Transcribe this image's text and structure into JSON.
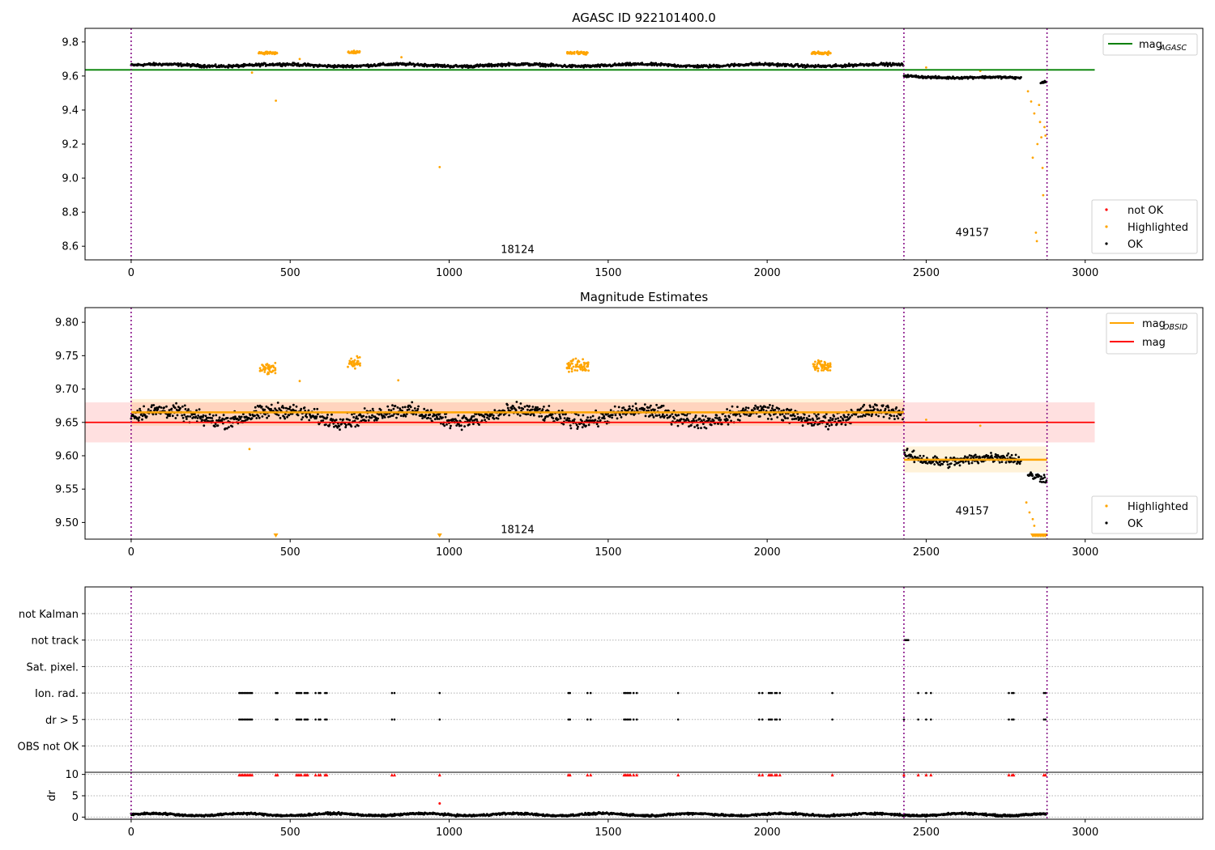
{
  "chart_data": [
    {
      "type": "scatter",
      "title": "AGASC ID 922101400.0",
      "xlim": [
        -145,
        3370
      ],
      "ylim": [
        8.52,
        9.88
      ],
      "xticks": [
        0,
        500,
        1000,
        1500,
        2000,
        2500,
        3000
      ],
      "yticks": [
        8.6,
        8.8,
        9.0,
        9.2,
        9.4,
        9.6,
        9.8
      ],
      "ytick_labels": [
        "8.6",
        "8.8",
        "9.0",
        "9.2",
        "9.4",
        "9.6",
        "9.8"
      ],
      "obs_boundaries": [
        0,
        2430,
        2880
      ],
      "obsids": [
        {
          "label": "18124",
          "x": 1215,
          "y": 8.56
        },
        {
          "label": "49157",
          "x": 2645,
          "y": 8.66
        }
      ],
      "lines": [
        {
          "name": "mag_AGASC",
          "x": [
            -145,
            3030
          ],
          "y": [
            9.636,
            9.636
          ],
          "color": "#008000"
        }
      ],
      "legends": [
        {
          "position": "upper right",
          "entries": [
            {
              "label": "mag",
              "sub": "AGASC",
              "kind": "line",
              "color": "#008000"
            }
          ]
        },
        {
          "position": "lower right",
          "entries": [
            {
              "label": "not OK",
              "kind": "point",
              "color": "#ff0000"
            },
            {
              "label": "Highlighted",
              "kind": "point",
              "color": "#ffa500"
            },
            {
              "label": "OK",
              "kind": "point",
              "color": "#000000"
            }
          ]
        }
      ],
      "series": [
        {
          "name": "OK",
          "color": "#000000",
          "segments": [
            {
              "x": [
                0,
                2430
              ],
              "y": [
                9.663,
                9.663
              ],
              "scatter": 0.012
            },
            {
              "x": [
                2430,
                2800
              ],
              "y": [
                9.6,
                9.585
              ],
              "scatter": 0.01
            },
            {
              "x": [
                2860,
                2880
              ],
              "y": [
                9.565,
                9.57
              ],
              "scatter": 0.01
            }
          ]
        },
        {
          "name": "Highlighted",
          "color": "#ffa500",
          "clusters": [
            {
              "x": [
                400,
                460
              ],
              "y": 9.735
            },
            {
              "x": [
                680,
                720
              ],
              "y": 9.74
            },
            {
              "x": [
                1370,
                1440
              ],
              "y": 9.735
            },
            {
              "x": [
                2140,
                2200
              ],
              "y": 9.735
            }
          ],
          "points": [
            [
              380,
              9.62
            ],
            [
              455,
              9.455
            ],
            [
              530,
              9.7
            ],
            [
              850,
              9.71
            ],
            [
              970,
              9.065
            ],
            [
              2500,
              9.65
            ],
            [
              2670,
              9.63
            ],
            [
              2820,
              9.51
            ],
            [
              2830,
              9.45
            ],
            [
              2835,
              9.12
            ],
            [
              2840,
              9.38
            ],
            [
              2845,
              8.68
            ],
            [
              2848,
              8.63
            ],
            [
              2850,
              9.2
            ],
            [
              2855,
              9.43
            ],
            [
              2858,
              9.33
            ],
            [
              2862,
              9.24
            ],
            [
              2866,
              9.06
            ],
            [
              2868,
              8.9
            ],
            [
              2872,
              9.3
            ],
            [
              2875,
              9.25
            ]
          ]
        }
      ]
    },
    {
      "type": "scatter",
      "title": "Magnitude Estimates",
      "xlim": [
        -145,
        3370
      ],
      "ylim": [
        9.475,
        9.822
      ],
      "xticks": [
        0,
        500,
        1000,
        1500,
        2000,
        2500,
        3000
      ],
      "yticks": [
        9.5,
        9.55,
        9.6,
        9.65,
        9.7,
        9.75,
        9.8
      ],
      "ytick_labels": [
        "9.50",
        "9.55",
        "9.60",
        "9.65",
        "9.70",
        "9.75",
        "9.80"
      ],
      "obs_boundaries": [
        0,
        2430,
        2880
      ],
      "obsids": [
        {
          "label": "18124",
          "x": 1215,
          "y": 9.484
        },
        {
          "label": "49157",
          "x": 2645,
          "y": 9.512
        }
      ],
      "lines": [
        {
          "name": "mag_OBSID",
          "x": [
            0,
            2430
          ],
          "y": [
            9.665,
            9.665
          ],
          "color": "#ffa500",
          "band": [
            9.645,
            9.685
          ]
        },
        {
          "name": "mag_OBSID",
          "x": [
            2430,
            2880
          ],
          "y": [
            9.594,
            9.594
          ],
          "color": "#ffa500",
          "band": [
            9.575,
            9.614
          ]
        },
        {
          "name": "mag",
          "x": [
            -145,
            3030
          ],
          "y": [
            9.65,
            9.65
          ],
          "color": "#ff0000",
          "band": [
            9.62,
            9.68
          ]
        }
      ],
      "legends": [
        {
          "position": "upper right",
          "entries": [
            {
              "label": "mag",
              "sub": "OBSID",
              "kind": "line",
              "color": "#ffa500"
            },
            {
              "label": "mag",
              "kind": "line",
              "color": "#ff0000"
            }
          ]
        },
        {
          "position": "lower right",
          "entries": [
            {
              "label": "Highlighted",
              "kind": "point",
              "color": "#ffa500"
            },
            {
              "label": "OK",
              "kind": "point",
              "color": "#000000"
            }
          ]
        }
      ],
      "series": [
        {
          "name": "OK",
          "color": "#000000",
          "segments": [
            {
              "x": [
                0,
                2430
              ],
              "y": [
                9.66,
                9.66
              ],
              "scatter": 0.016
            },
            {
              "x": [
                2430,
                2800
              ],
              "y": [
                9.6,
                9.59
              ],
              "scatter": 0.012
            },
            {
              "x": [
                2820,
                2880
              ],
              "y": [
                9.57,
                9.57
              ],
              "scatter": 0.01
            }
          ]
        },
        {
          "name": "Highlighted",
          "color": "#ffa500",
          "clusters": [
            {
              "x": [
                405,
                455
              ],
              "y": 9.73
            },
            {
              "x": [
                680,
                720
              ],
              "y": 9.74
            },
            {
              "x": [
                1370,
                1440
              ],
              "y": 9.735
            },
            {
              "x": [
                2140,
                2200
              ],
              "y": 9.735
            }
          ],
          "points": [
            [
              372,
              9.61
            ],
            [
              530,
              9.712
            ],
            [
              840,
              9.713
            ],
            [
              2500,
              9.654
            ],
            [
              2670,
              9.645
            ],
            [
              2815,
              9.53
            ],
            [
              2825,
              9.515
            ],
            [
              2835,
              9.505
            ],
            [
              2840,
              9.495
            ]
          ],
          "clipped_low": [
            455,
            970,
            2835,
            2840,
            2845,
            2850,
            2855,
            2860,
            2865,
            2870,
            2875
          ]
        }
      ]
    },
    {
      "type": "scatter",
      "title": "",
      "xlim": [
        -145,
        3370
      ],
      "categories": [
        "not Kalman",
        "not track",
        "Sat. pixel.",
        "Ion. rad.",
        "dr > 5",
        "OBS not OK"
      ],
      "obs_boundaries": [
        0,
        2430,
        2880
      ],
      "flags": {
        "Ion. rad.": [
          340,
          345,
          350,
          355,
          360,
          365,
          370,
          375,
          380,
          455,
          460,
          520,
          525,
          530,
          535,
          545,
          550,
          555,
          580,
          590,
          595,
          610,
          615,
          820,
          828,
          970,
          1375,
          1380,
          1435,
          1445,
          1550,
          1555,
          1560,
          1565,
          1570,
          1580,
          1590,
          1720,
          1975,
          1985,
          2005,
          2010,
          2015,
          2025,
          2030,
          2040,
          2205,
          2475,
          2500,
          2515,
          2760,
          2770,
          2775,
          2870,
          2875
        ],
        "dr > 5": [
          340,
          345,
          350,
          355,
          360,
          365,
          370,
          375,
          380,
          455,
          460,
          520,
          525,
          530,
          535,
          545,
          550,
          555,
          580,
          590,
          595,
          610,
          615,
          820,
          828,
          970,
          1375,
          1380,
          1435,
          1445,
          1550,
          1555,
          1560,
          1565,
          1570,
          1580,
          1590,
          1720,
          1975,
          1985,
          2005,
          2010,
          2015,
          2025,
          2030,
          2040,
          2205,
          2430,
          2475,
          2500,
          2515,
          2760,
          2770,
          2775,
          2870,
          2875
        ],
        "not track": [
          2432,
          2436,
          2440,
          2444
        ]
      }
    },
    {
      "type": "scatter",
      "title": "",
      "xlabel": "",
      "ylabel": "dr",
      "xlim": [
        -145,
        3370
      ],
      "ylim": [
        -0.5,
        10.5
      ],
      "yticks": [
        0,
        5,
        10
      ],
      "ytick_labels": [
        "0",
        "5",
        "10"
      ],
      "xticks": [
        0,
        500,
        1000,
        1500,
        2000,
        2500,
        3000
      ],
      "obs_boundaries": [
        0,
        2430,
        2880
      ],
      "series": [
        {
          "name": "dr",
          "color": "#000000",
          "x": [
            0,
            2880
          ],
          "y_mean": 0.6,
          "scatter": 0.35
        },
        {
          "name": "dr > 10",
          "color": "#ff0000",
          "marker": "triangle",
          "y": 9.9,
          "x_from_flags": "dr > 5",
          "extra_points": [
            [
              970,
              3.2
            ]
          ]
        }
      ]
    }
  ]
}
